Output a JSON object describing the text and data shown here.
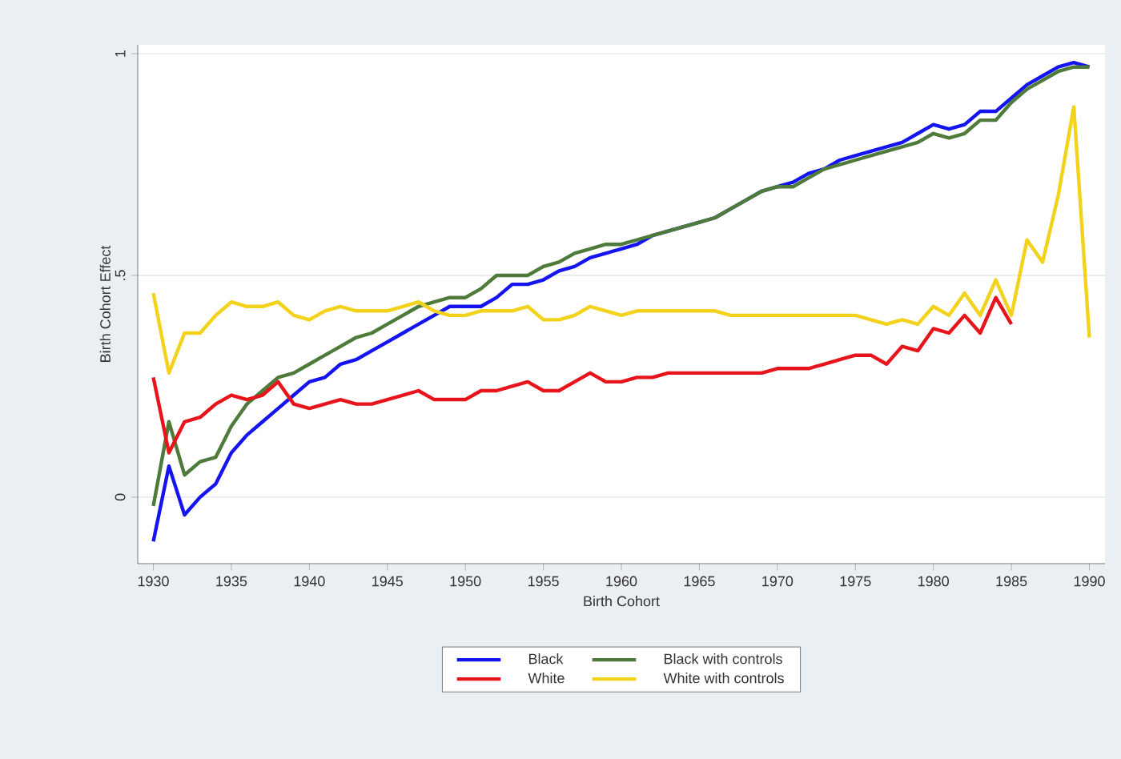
{
  "chart_data": {
    "type": "line",
    "xlabel": "Birth Cohort",
    "ylabel": "Birth Cohort Effect",
    "x": [
      1930,
      1931,
      1932,
      1933,
      1934,
      1935,
      1936,
      1937,
      1938,
      1939,
      1940,
      1941,
      1942,
      1943,
      1944,
      1945,
      1946,
      1947,
      1948,
      1949,
      1950,
      1951,
      1952,
      1953,
      1954,
      1955,
      1956,
      1957,
      1958,
      1959,
      1960,
      1961,
      1962,
      1963,
      1964,
      1965,
      1966,
      1967,
      1968,
      1969,
      1970,
      1971,
      1972,
      1973,
      1974,
      1975,
      1976,
      1977,
      1978,
      1979,
      1980,
      1981,
      1982,
      1983,
      1984,
      1985,
      1986,
      1987,
      1988,
      1989,
      1990
    ],
    "series": [
      {
        "name": "Black",
        "color": "#1414f0",
        "values": [
          -0.1,
          0.07,
          -0.04,
          0.0,
          0.03,
          0.1,
          0.14,
          0.17,
          0.2,
          0.23,
          0.26,
          0.27,
          0.3,
          0.31,
          0.33,
          0.35,
          0.37,
          0.39,
          0.41,
          0.43,
          0.43,
          0.43,
          0.45,
          0.48,
          0.48,
          0.49,
          0.51,
          0.52,
          0.54,
          0.55,
          0.56,
          0.57,
          0.59,
          0.6,
          0.61,
          0.62,
          0.63,
          0.65,
          0.67,
          0.69,
          0.7,
          0.71,
          0.73,
          0.74,
          0.76,
          0.77,
          0.78,
          0.79,
          0.8,
          0.82,
          0.84,
          0.83,
          0.84,
          0.87,
          0.87,
          0.9,
          0.93,
          0.95,
          0.97,
          0.98,
          0.97
        ]
      },
      {
        "name": "White",
        "color": "#e8141b",
        "values": [
          0.27,
          0.1,
          0.17,
          0.18,
          0.21,
          0.23,
          0.22,
          0.23,
          0.26,
          0.21,
          0.2,
          0.21,
          0.22,
          0.21,
          0.21,
          0.22,
          0.23,
          0.24,
          0.22,
          0.22,
          0.22,
          0.24,
          0.24,
          0.25,
          0.26,
          0.24,
          0.24,
          0.26,
          0.28,
          0.26,
          0.26,
          0.27,
          0.27,
          0.28,
          0.28,
          0.28,
          0.28,
          0.28,
          0.28,
          0.28,
          0.29,
          0.29,
          0.29,
          0.3,
          0.31,
          0.32,
          0.32,
          0.3,
          0.34,
          0.33,
          0.38,
          0.37,
          0.41,
          0.37,
          0.45,
          0.39,
          null,
          null,
          null,
          null,
          null
        ]
      },
      {
        "name": "Black with controls",
        "color": "#4e7a3a",
        "values": [
          -0.02,
          0.17,
          0.05,
          0.08,
          0.09,
          0.16,
          0.21,
          0.24,
          0.27,
          0.28,
          0.3,
          0.32,
          0.34,
          0.36,
          0.37,
          0.39,
          0.41,
          0.43,
          0.44,
          0.45,
          0.45,
          0.47,
          0.5,
          0.5,
          0.5,
          0.52,
          0.53,
          0.55,
          0.56,
          0.57,
          0.57,
          0.58,
          0.59,
          0.6,
          0.61,
          0.62,
          0.63,
          0.65,
          0.67,
          0.69,
          0.7,
          0.7,
          0.72,
          0.74,
          0.75,
          0.76,
          0.77,
          0.78,
          0.79,
          0.8,
          0.82,
          0.81,
          0.82,
          0.85,
          0.85,
          0.89,
          0.92,
          0.94,
          0.96,
          0.97,
          0.97
        ]
      },
      {
        "name": "White with controls",
        "color": "#f2d21b",
        "values": [
          0.46,
          0.28,
          0.37,
          0.37,
          0.41,
          0.44,
          0.43,
          0.43,
          0.44,
          0.41,
          0.4,
          0.42,
          0.43,
          0.42,
          0.42,
          0.42,
          0.43,
          0.44,
          0.42,
          0.41,
          0.41,
          0.42,
          0.42,
          0.42,
          0.43,
          0.4,
          0.4,
          0.41,
          0.43,
          0.42,
          0.41,
          0.42,
          0.42,
          0.42,
          0.42,
          0.42,
          0.42,
          0.41,
          0.41,
          0.41,
          0.41,
          0.41,
          0.41,
          0.41,
          0.41,
          0.41,
          0.4,
          0.39,
          0.4,
          0.39,
          0.43,
          0.41,
          0.46,
          0.41,
          0.49,
          0.41,
          0.58,
          0.53,
          0.68,
          0.88,
          0.36
        ]
      }
    ],
    "xlim": [
      1929,
      1991
    ],
    "xticks": [
      1930,
      1935,
      1940,
      1945,
      1950,
      1955,
      1960,
      1965,
      1970,
      1975,
      1980,
      1985,
      1990
    ],
    "ylim": [
      -0.15,
      1.02
    ],
    "yticks": [
      0,
      {
        "value": 0.5,
        "label": ".5"
      },
      1
    ],
    "grid": "y",
    "legend": "bottom",
    "marker": "none",
    "line_style": "solid"
  }
}
